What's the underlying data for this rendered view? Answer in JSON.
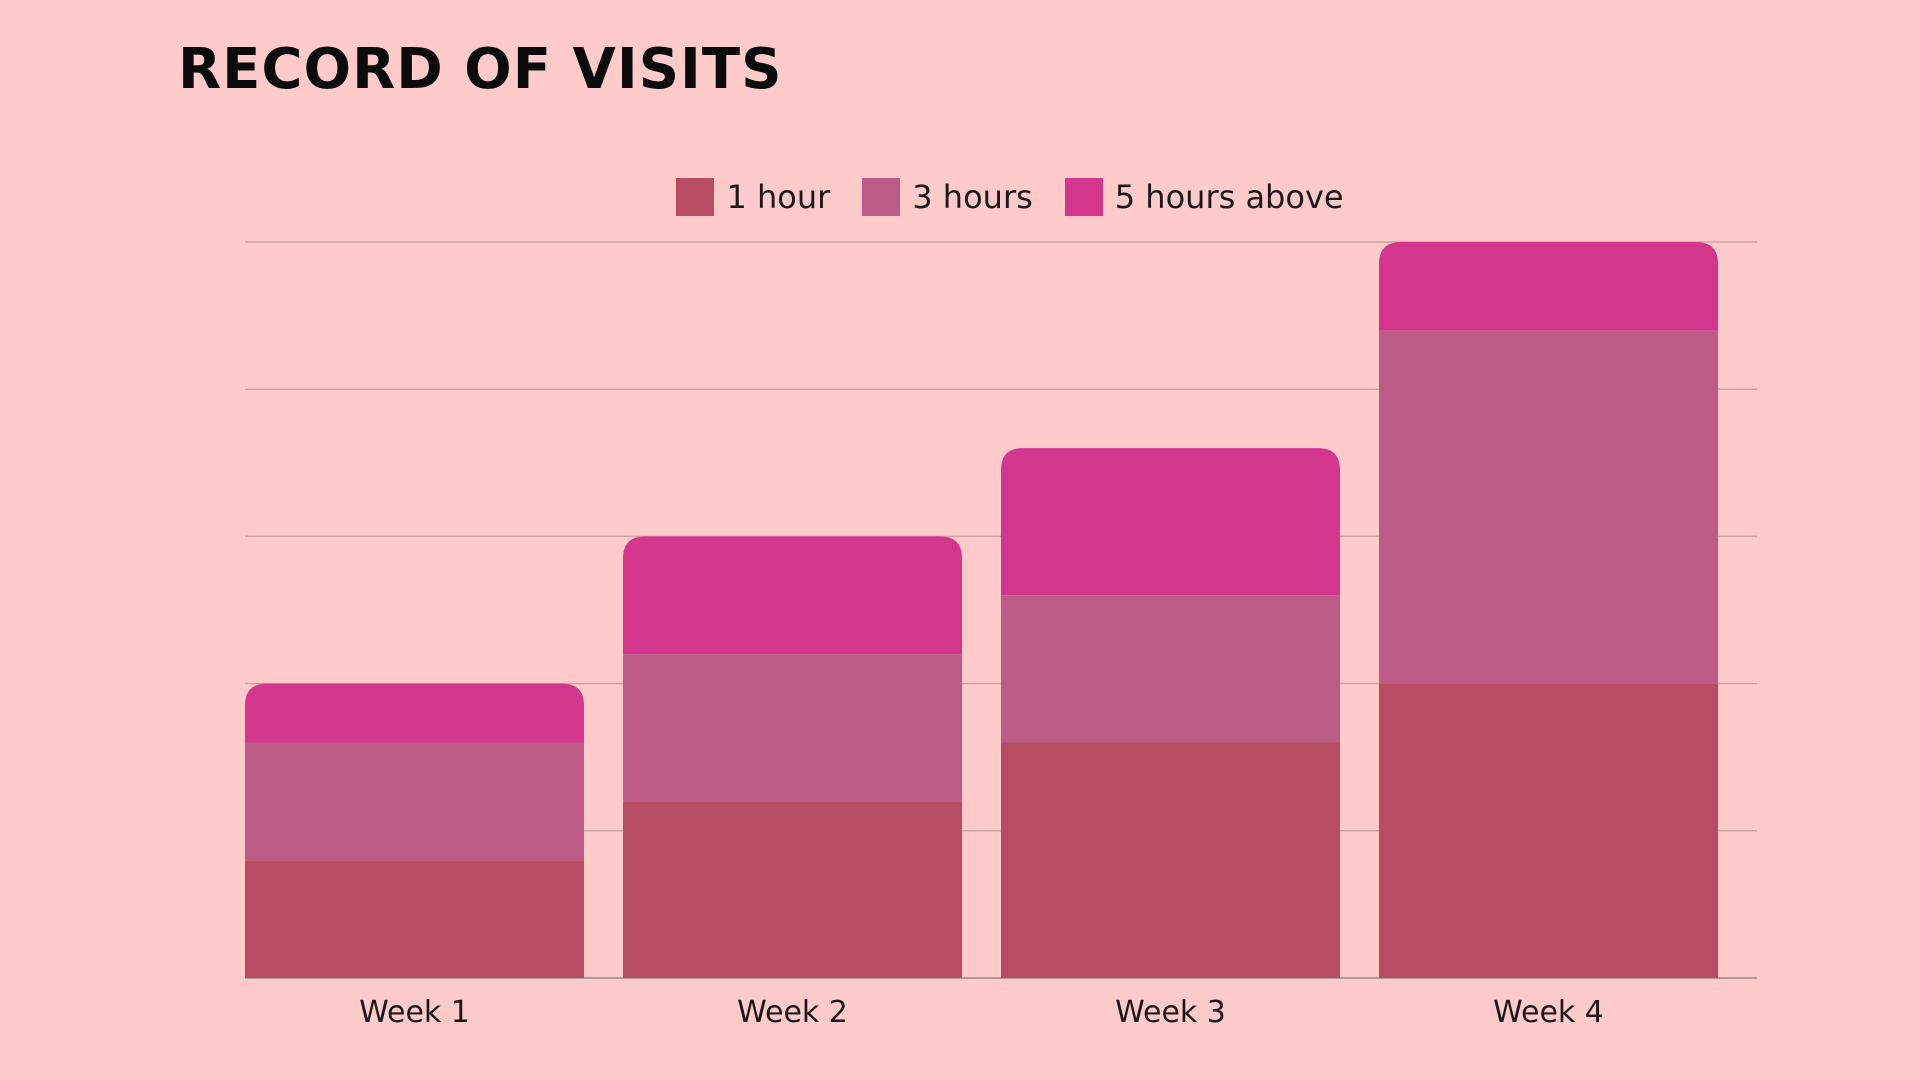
{
  "chart_data": {
    "type": "bar",
    "stacked": true,
    "title": "Record of Visits",
    "categories": [
      "Week 1",
      "Week 2",
      "Week 3",
      "Week 4"
    ],
    "series": [
      {
        "name": "1 hour",
        "values": [
          4,
          6,
          8,
          10
        ],
        "color": "#B74C62"
      },
      {
        "name": "3 hours",
        "values": [
          4,
          5,
          5,
          12
        ],
        "color": "#BB5B86"
      },
      {
        "name": "5 hours above",
        "values": [
          2,
          4,
          5,
          3
        ],
        "color": "#D4368E"
      }
    ],
    "ylim": [
      0,
      25
    ],
    "y_ticks": [
      0,
      5,
      10,
      15,
      20,
      25
    ],
    "y_tick_labels_shown": false,
    "grid": true,
    "legend_position": "top-center",
    "background": "#FFCACA"
  }
}
